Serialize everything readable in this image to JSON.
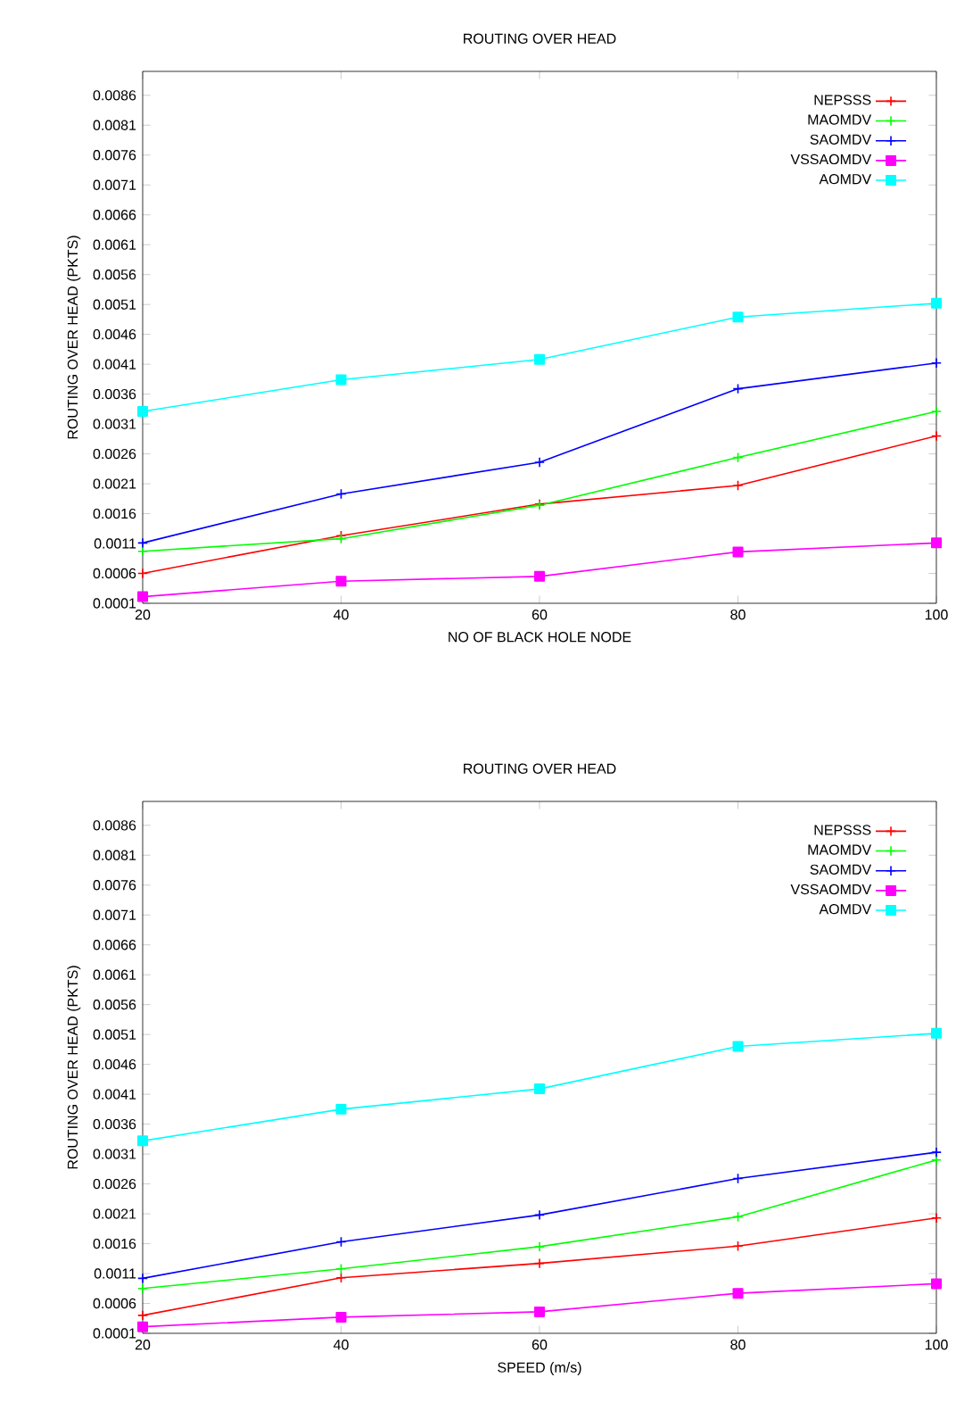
{
  "chart_data": [
    {
      "type": "line",
      "title": "ROUTING OVER HEAD",
      "xlabel": "NO OF BLACK HOLE NODE",
      "ylabel": "ROUTING OVER HEAD (PKTS)",
      "x": [
        20,
        40,
        60,
        80,
        100
      ],
      "xlim": [
        20,
        100
      ],
      "xticks": [
        20,
        40,
        60,
        80,
        100
      ],
      "ylim": [
        0.0001,
        0.009
      ],
      "yticks": [
        0.0001,
        0.0006,
        0.0011,
        0.0016,
        0.0021,
        0.0026,
        0.0031,
        0.0036,
        0.0041,
        0.0046,
        0.0051,
        0.0056,
        0.0061,
        0.0066,
        0.0071,
        0.0076,
        0.0081,
        0.0086
      ],
      "legend": "top right",
      "grid": false,
      "series": [
        {
          "name": "NEPSSS",
          "color": "#ff0000",
          "marker": "cross",
          "values": [
            0.0006,
            0.00123,
            0.00176,
            0.00207,
            0.0029
          ]
        },
        {
          "name": "MAOMDV",
          "color": "#00ff00",
          "marker": "cross",
          "values": [
            0.00097,
            0.00118,
            0.00174,
            0.00254,
            0.00331
          ]
        },
        {
          "name": "SAOMDV",
          "color": "#0000ff",
          "marker": "cross",
          "values": [
            0.00111,
            0.00193,
            0.00246,
            0.00369,
            0.00412
          ]
        },
        {
          "name": "VSSAOMDV",
          "color": "#ff00ff",
          "marker": "square",
          "values": [
            0.00021,
            0.00047,
            0.00055,
            0.00096,
            0.00111
          ]
        },
        {
          "name": "AOMDV",
          "color": "#00ffff",
          "marker": "square",
          "values": [
            0.00331,
            0.00384,
            0.00418,
            0.00489,
            0.00512
          ]
        }
      ]
    },
    {
      "type": "line",
      "title": "ROUTING OVER HEAD",
      "xlabel": "SPEED (m/s)",
      "ylabel": "ROUTING OVER HEAD (PKTS)",
      "x": [
        20,
        40,
        60,
        80,
        100
      ],
      "xlim": [
        20,
        100
      ],
      "xticks": [
        20,
        40,
        60,
        80,
        100
      ],
      "ylim": [
        0.0001,
        0.009
      ],
      "yticks": [
        0.0001,
        0.0006,
        0.0011,
        0.0016,
        0.0021,
        0.0026,
        0.0031,
        0.0036,
        0.0041,
        0.0046,
        0.0051,
        0.0056,
        0.0061,
        0.0066,
        0.0071,
        0.0076,
        0.0081,
        0.0086
      ],
      "legend": "top right",
      "grid": false,
      "series": [
        {
          "name": "NEPSSS",
          "color": "#ff0000",
          "marker": "cross",
          "values": [
            0.0004,
            0.00103,
            0.00127,
            0.00156,
            0.00203
          ]
        },
        {
          "name": "MAOMDV",
          "color": "#00ff00",
          "marker": "cross",
          "values": [
            0.00085,
            0.00118,
            0.00155,
            0.00205,
            0.003
          ]
        },
        {
          "name": "SAOMDV",
          "color": "#0000ff",
          "marker": "cross",
          "values": [
            0.00102,
            0.00163,
            0.00208,
            0.00269,
            0.00313
          ]
        },
        {
          "name": "VSSAOMDV",
          "color": "#ff00ff",
          "marker": "square",
          "values": [
            0.00021,
            0.00037,
            0.00046,
            0.00077,
            0.00093
          ]
        },
        {
          "name": "AOMDV",
          "color": "#00ffff",
          "marker": "square",
          "values": [
            0.00332,
            0.00385,
            0.00419,
            0.0049,
            0.00512
          ]
        }
      ]
    }
  ]
}
